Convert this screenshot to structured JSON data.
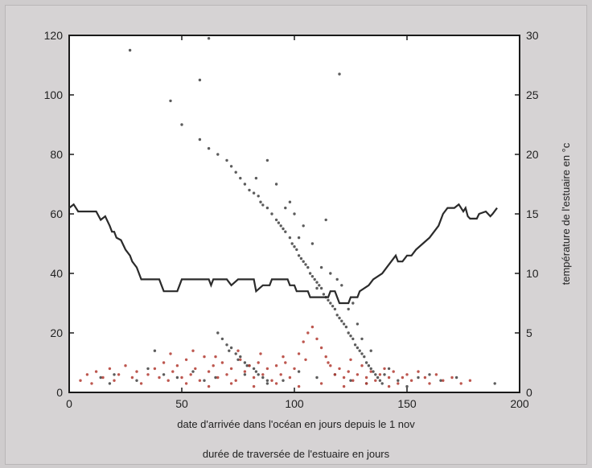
{
  "chart_data": {
    "type": "scatter",
    "xlabel": "date d'arrivée dans l'océan en jours depuis le 1 nov",
    "xlabel2": "durée de traversée de l'estuaire en jours",
    "ylabel_right": "température de l'estuaire en °c",
    "xlim": [
      0,
      200
    ],
    "ylim_left": [
      0,
      120
    ],
    "ylim_right": [
      0,
      30
    ],
    "x_ticks": [
      "0",
      "50",
      "100",
      "150",
      "200"
    ],
    "y_ticks_left": [
      "0",
      "20",
      "40",
      "60",
      "80",
      "100",
      "120"
    ],
    "y_ticks_right": [
      "0",
      "5",
      "10",
      "15",
      "20",
      "25",
      "30"
    ],
    "grid": false,
    "colors": {
      "plot_bg": "#ffffff",
      "dark_points": "#3f3f3f",
      "red_points": "#b23a30",
      "temperature_line": "#2b2b2b"
    },
    "series": [
      {
        "style": "dark-scatter",
        "points": [
          [
            27,
            115
          ],
          [
            62,
            119
          ],
          [
            58,
            105
          ],
          [
            120,
            107
          ],
          [
            45,
            98
          ],
          [
            50,
            90
          ],
          [
            58,
            85
          ],
          [
            62,
            82
          ],
          [
            66,
            80
          ],
          [
            70,
            78
          ],
          [
            72,
            76
          ],
          [
            74,
            74
          ],
          [
            76,
            72
          ],
          [
            78,
            70
          ],
          [
            80,
            68
          ],
          [
            82,
            67
          ],
          [
            84,
            66
          ],
          [
            85,
            64
          ],
          [
            86,
            63
          ],
          [
            88,
            62
          ],
          [
            90,
            60
          ],
          [
            92,
            58
          ],
          [
            93,
            57
          ],
          [
            94,
            56
          ],
          [
            95,
            55
          ],
          [
            96,
            54
          ],
          [
            98,
            52
          ],
          [
            99,
            50
          ],
          [
            100,
            49
          ],
          [
            101,
            48
          ],
          [
            102,
            46
          ],
          [
            103,
            45
          ],
          [
            104,
            44
          ],
          [
            105,
            43
          ],
          [
            106,
            42
          ],
          [
            107,
            40
          ],
          [
            108,
            39
          ],
          [
            109,
            38
          ],
          [
            110,
            37
          ],
          [
            111,
            36
          ],
          [
            112,
            35
          ],
          [
            113,
            33
          ],
          [
            114,
            32
          ],
          [
            115,
            31
          ],
          [
            116,
            30
          ],
          [
            117,
            29
          ],
          [
            118,
            28
          ],
          [
            119,
            26
          ],
          [
            120,
            25
          ],
          [
            121,
            24
          ],
          [
            122,
            23
          ],
          [
            123,
            22
          ],
          [
            124,
            20
          ],
          [
            125,
            19
          ],
          [
            126,
            18
          ],
          [
            127,
            16
          ],
          [
            128,
            15
          ],
          [
            129,
            14
          ],
          [
            130,
            13
          ],
          [
            131,
            12
          ],
          [
            132,
            10
          ],
          [
            133,
            9
          ],
          [
            134,
            8
          ],
          [
            135,
            7
          ],
          [
            136,
            6
          ],
          [
            137,
            5
          ],
          [
            138,
            4
          ],
          [
            139,
            3
          ],
          [
            88,
            78
          ],
          [
            92,
            70
          ],
          [
            104,
            56
          ],
          [
            98,
            64
          ],
          [
            112,
            42
          ],
          [
            119,
            38
          ],
          [
            126,
            30
          ],
          [
            128,
            23
          ],
          [
            114,
            58
          ],
          [
            110,
            35
          ],
          [
            116,
            40
          ],
          [
            130,
            18
          ],
          [
            134,
            14
          ],
          [
            108,
            50
          ],
          [
            102,
            52
          ],
          [
            121,
            36
          ],
          [
            124,
            28
          ],
          [
            100,
            60
          ],
          [
            96,
            62
          ],
          [
            83,
            72
          ],
          [
            66,
            20
          ],
          [
            68,
            18
          ],
          [
            70,
            16
          ],
          [
            72,
            15
          ],
          [
            74,
            13
          ],
          [
            76,
            12
          ],
          [
            78,
            10
          ],
          [
            80,
            9
          ],
          [
            82,
            8
          ],
          [
            84,
            6
          ],
          [
            86,
            5
          ],
          [
            88,
            4
          ],
          [
            71,
            14
          ],
          [
            75,
            11
          ],
          [
            79,
            9
          ],
          [
            83,
            7
          ],
          [
            14,
            5
          ],
          [
            20,
            6
          ],
          [
            30,
            4
          ],
          [
            42,
            6
          ],
          [
            55,
            7
          ],
          [
            65,
            5
          ],
          [
            78,
            6
          ],
          [
            95,
            4
          ],
          [
            110,
            5
          ],
          [
            125,
            4
          ],
          [
            140,
            6
          ],
          [
            155,
            5
          ],
          [
            165,
            4
          ],
          [
            172,
            5
          ],
          [
            18,
            3
          ],
          [
            35,
            8
          ],
          [
            48,
            5
          ],
          [
            60,
            4
          ],
          [
            88,
            3
          ],
          [
            102,
            7
          ],
          [
            118,
            6
          ],
          [
            132,
            3
          ],
          [
            146,
            4
          ],
          [
            160,
            6
          ],
          [
            38,
            14
          ],
          [
            142,
            8
          ],
          [
            150,
            2
          ],
          [
            189,
            3
          ]
        ]
      },
      {
        "style": "red-scatter",
        "points": [
          [
            5,
            4
          ],
          [
            8,
            6
          ],
          [
            10,
            3
          ],
          [
            12,
            7
          ],
          [
            15,
            5
          ],
          [
            18,
            8
          ],
          [
            20,
            4
          ],
          [
            22,
            6
          ],
          [
            25,
            9
          ],
          [
            28,
            5
          ],
          [
            30,
            7
          ],
          [
            32,
            3
          ],
          [
            35,
            6
          ],
          [
            38,
            8
          ],
          [
            40,
            5
          ],
          [
            42,
            10
          ],
          [
            44,
            4
          ],
          [
            46,
            7
          ],
          [
            48,
            9
          ],
          [
            50,
            5
          ],
          [
            52,
            11
          ],
          [
            54,
            6
          ],
          [
            56,
            8
          ],
          [
            58,
            4
          ],
          [
            60,
            12
          ],
          [
            62,
            7
          ],
          [
            64,
            9
          ],
          [
            66,
            5
          ],
          [
            68,
            10
          ],
          [
            70,
            6
          ],
          [
            72,
            8
          ],
          [
            74,
            4
          ],
          [
            76,
            11
          ],
          [
            78,
            7
          ],
          [
            80,
            9
          ],
          [
            82,
            5
          ],
          [
            84,
            10
          ],
          [
            86,
            6
          ],
          [
            88,
            8
          ],
          [
            90,
            4
          ],
          [
            92,
            9
          ],
          [
            94,
            6
          ],
          [
            96,
            10
          ],
          [
            98,
            5
          ],
          [
            100,
            8
          ],
          [
            102,
            13
          ],
          [
            104,
            17
          ],
          [
            106,
            20
          ],
          [
            108,
            22
          ],
          [
            110,
            18
          ],
          [
            112,
            15
          ],
          [
            114,
            12
          ],
          [
            116,
            9
          ],
          [
            118,
            6
          ],
          [
            120,
            8
          ],
          [
            122,
            5
          ],
          [
            124,
            7
          ],
          [
            126,
            4
          ],
          [
            128,
            6
          ],
          [
            130,
            9
          ],
          [
            132,
            5
          ],
          [
            134,
            7
          ],
          [
            136,
            4
          ],
          [
            138,
            6
          ],
          [
            140,
            8
          ],
          [
            142,
            5
          ],
          [
            144,
            7
          ],
          [
            146,
            3
          ],
          [
            148,
            5
          ],
          [
            150,
            6
          ],
          [
            152,
            4
          ],
          [
            155,
            7
          ],
          [
            158,
            5
          ],
          [
            160,
            3
          ],
          [
            163,
            6
          ],
          [
            166,
            4
          ],
          [
            170,
            5
          ],
          [
            174,
            3
          ],
          [
            178,
            4
          ],
          [
            45,
            13
          ],
          [
            55,
            14
          ],
          [
            65,
            12
          ],
          [
            75,
            14
          ],
          [
            85,
            13
          ],
          [
            95,
            12
          ],
          [
            105,
            11
          ],
          [
            115,
            10
          ],
          [
            125,
            11
          ],
          [
            52,
            3
          ],
          [
            62,
            2
          ],
          [
            72,
            3
          ],
          [
            82,
            2
          ],
          [
            92,
            3
          ],
          [
            102,
            2
          ],
          [
            112,
            3
          ],
          [
            122,
            2
          ],
          [
            132,
            3
          ],
          [
            142,
            2
          ]
        ]
      }
    ],
    "temperature_line": [
      [
        0,
        15.5
      ],
      [
        2,
        15.8
      ],
      [
        4,
        15.2
      ],
      [
        12,
        15.2
      ],
      [
        14,
        14.5
      ],
      [
        16,
        14.8
      ],
      [
        18,
        14
      ],
      [
        19,
        13.5
      ],
      [
        20,
        13.5
      ],
      [
        21,
        13
      ],
      [
        23,
        12.8
      ],
      [
        25,
        12
      ],
      [
        27,
        11.5
      ],
      [
        28,
        11
      ],
      [
        30,
        10.5
      ],
      [
        31,
        10
      ],
      [
        32,
        9.5
      ],
      [
        40,
        9.5
      ],
      [
        41,
        9
      ],
      [
        42,
        8.5
      ],
      [
        48,
        8.5
      ],
      [
        49,
        9
      ],
      [
        50,
        9.5
      ],
      [
        62,
        9.5
      ],
      [
        63,
        9
      ],
      [
        64,
        9.5
      ],
      [
        70,
        9.5
      ],
      [
        72,
        9.0
      ],
      [
        75,
        9.5
      ],
      [
        82,
        9.5
      ],
      [
        83,
        8.5
      ],
      [
        86,
        9
      ],
      [
        89,
        9
      ],
      [
        90,
        9.5
      ],
      [
        97,
        9.5
      ],
      [
        98,
        9.0
      ],
      [
        100,
        9.0
      ],
      [
        101,
        8.5
      ],
      [
        106,
        8.5
      ],
      [
        107,
        8.0
      ],
      [
        115,
        8.0
      ],
      [
        116,
        8.5
      ],
      [
        118,
        8.5
      ],
      [
        120,
        7.5
      ],
      [
        124,
        7.5
      ],
      [
        125,
        8.0
      ],
      [
        128,
        8.0
      ],
      [
        129,
        8.5
      ],
      [
        133,
        9.0
      ],
      [
        135,
        9.5
      ],
      [
        139,
        10
      ],
      [
        141,
        10.5
      ],
      [
        143,
        11
      ],
      [
        145,
        11.5
      ],
      [
        146,
        11
      ],
      [
        148,
        11
      ],
      [
        150,
        11.5
      ],
      [
        152,
        11.5
      ],
      [
        154,
        12
      ],
      [
        157,
        12.5
      ],
      [
        160,
        13
      ],
      [
        164,
        14
      ],
      [
        166,
        15.0
      ],
      [
        168,
        15.5
      ],
      [
        171,
        15.5
      ],
      [
        173,
        15.8
      ],
      [
        175,
        15.2
      ],
      [
        176,
        15.5
      ],
      [
        177,
        14.8
      ],
      [
        178,
        14.6
      ],
      [
        181,
        14.6
      ],
      [
        182,
        15
      ],
      [
        185,
        15.2
      ],
      [
        186,
        15.0
      ],
      [
        187,
        14.8
      ],
      [
        188,
        15
      ],
      [
        190,
        15.5
      ]
    ]
  }
}
